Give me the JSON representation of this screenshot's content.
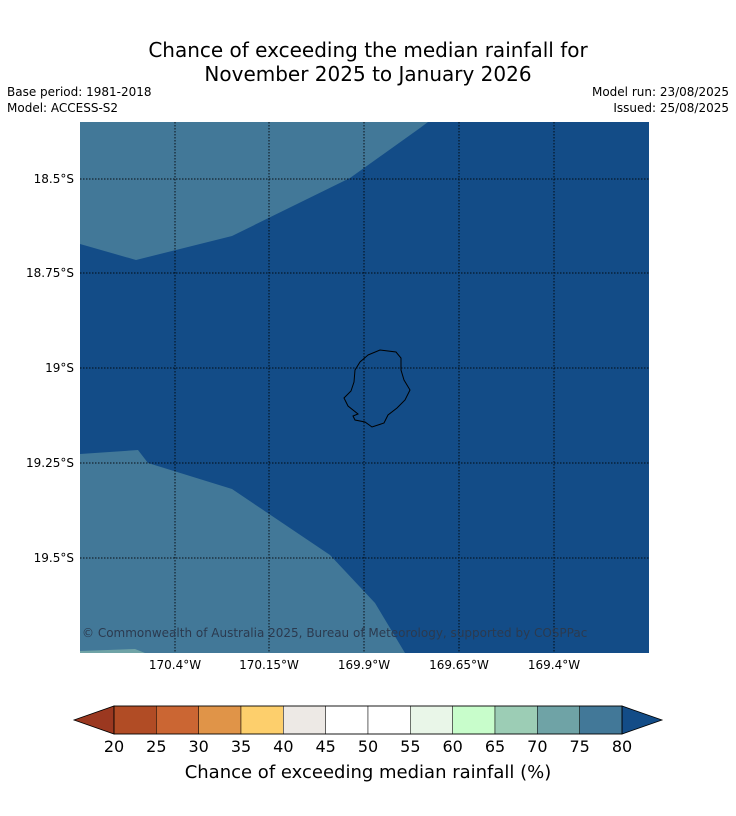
{
  "title_line1": "Chance of exceeding the median rainfall for",
  "title_line2": "November 2025 to January 2026",
  "base_period": "Base period: 1981-2018",
  "model": "Model: ACCESS-S2",
  "model_run": "Model run: 23/08/2025",
  "issued": "Issued: 25/08/2025",
  "copyright": "© Commonwealth of Australia 2025, Bureau of Meteorology, supported by COSPPac",
  "map": {
    "latitude_labels": [
      "18.5°S",
      "18.75°S",
      "19°S",
      "19.25°S",
      "19.5°S"
    ],
    "longitude_labels": [
      "170.4°W",
      "170.15°W",
      "169.9°W",
      "169.65°W",
      "169.4°W"
    ],
    "dominant_category": "above 80%",
    "secondary_category": "75–80%",
    "colors": {
      "dominant": "#134c87",
      "secondary": "#427898",
      "island_edge": "#000000"
    }
  },
  "colorbar": {
    "title": "Chance of exceeding median rainfall (%)",
    "ticks": [
      "20",
      "25",
      "30",
      "35",
      "40",
      "45",
      "50",
      "55",
      "60",
      "65",
      "70",
      "75",
      "80"
    ],
    "low_extend_color": "#9b3820",
    "high_extend_color": "#134c87",
    "colors": [
      "#b14c25",
      "#cb6633",
      "#e09448",
      "#fdcf6c",
      "#ede9e5",
      "#ffffff",
      "#ffffff",
      "#e9f6e8",
      "#c8fdcb",
      "#9ccdb5",
      "#6fa3a6",
      "#427898"
    ]
  }
}
